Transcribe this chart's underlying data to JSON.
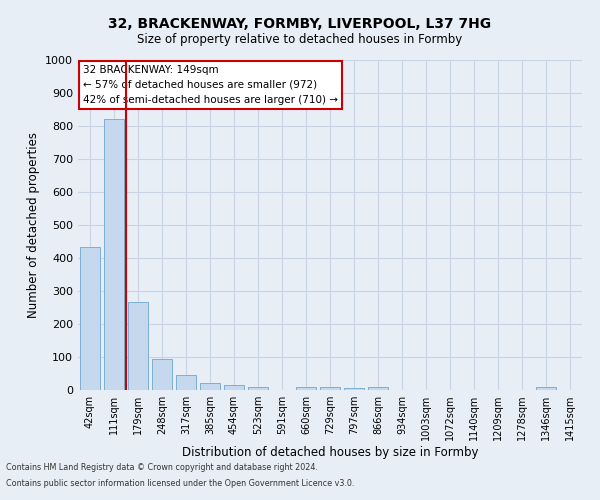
{
  "title1": "32, BRACKENWAY, FORMBY, LIVERPOOL, L37 7HG",
  "title2": "Size of property relative to detached houses in Formby",
  "xlabel": "Distribution of detached houses by size in Formby",
  "ylabel": "Number of detached properties",
  "categories": [
    "42sqm",
    "111sqm",
    "179sqm",
    "248sqm",
    "317sqm",
    "385sqm",
    "454sqm",
    "523sqm",
    "591sqm",
    "660sqm",
    "729sqm",
    "797sqm",
    "866sqm",
    "934sqm",
    "1003sqm",
    "1072sqm",
    "1140sqm",
    "1209sqm",
    "1278sqm",
    "1346sqm",
    "1415sqm"
  ],
  "values": [
    432,
    820,
    268,
    93,
    45,
    22,
    15,
    10,
    0,
    10,
    8,
    6,
    8,
    0,
    0,
    0,
    0,
    0,
    0,
    8,
    0
  ],
  "bar_color": "#c5d8ee",
  "bar_edge_color": "#7aafd4",
  "grid_color": "#c8d4e4",
  "background_color": "#e8eef6",
  "vline_x": 1.5,
  "vline_color": "#cc0000",
  "annotation_text": "32 BRACKENWAY: 149sqm\n← 57% of detached houses are smaller (972)\n42% of semi-detached houses are larger (710) →",
  "annotation_box_color": "#ffffff",
  "annotation_box_edge": "#cc0000",
  "footer1": "Contains HM Land Registry data © Crown copyright and database right 2024.",
  "footer2": "Contains public sector information licensed under the Open Government Licence v3.0.",
  "ylim": [
    0,
    1000
  ],
  "yticks": [
    0,
    100,
    200,
    300,
    400,
    500,
    600,
    700,
    800,
    900,
    1000
  ]
}
